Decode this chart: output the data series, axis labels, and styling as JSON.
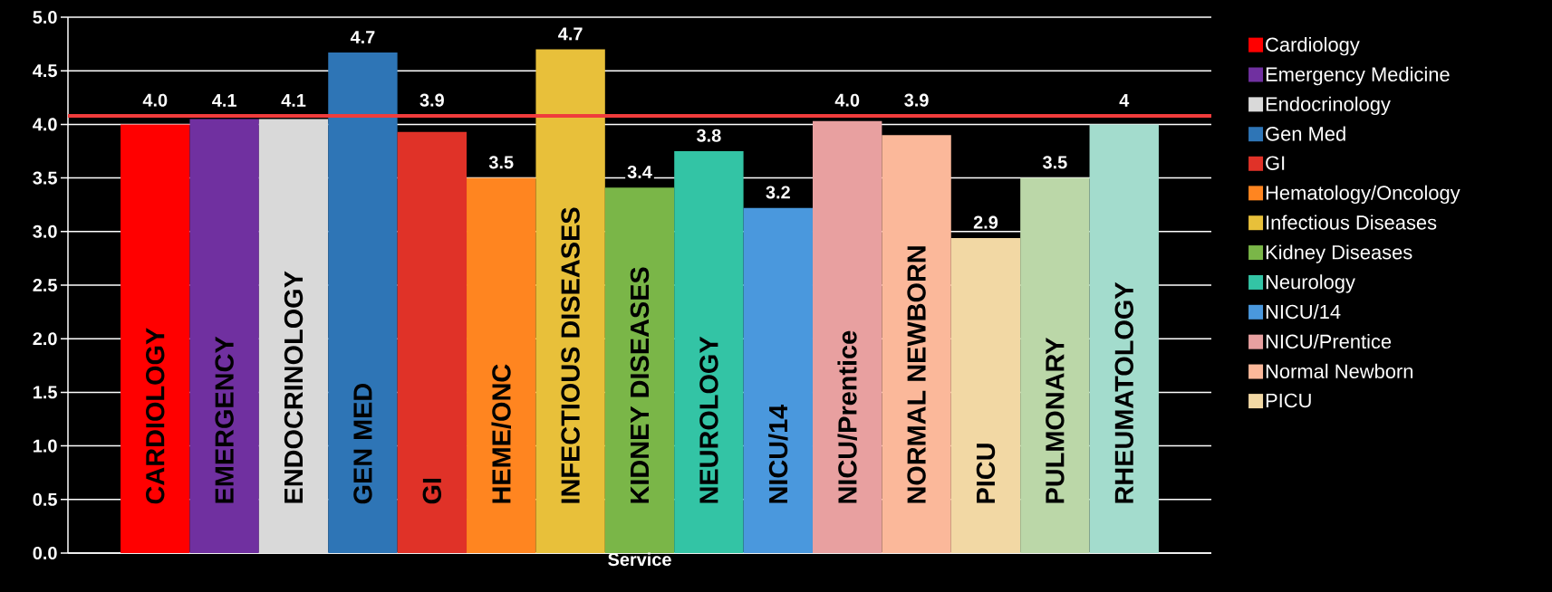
{
  "chart_data": {
    "type": "bar",
    "xlabel": "Service",
    "legend": "right",
    "grid": "y",
    "data_labels": false,
    "categories": [
      "CARDIOLOGY",
      "EMERGENCY",
      "ENDOCRINOLOGY",
      "GEN MED",
      "GI",
      "HEME/ONC",
      "INFECTIOUS DISEASES",
      "KIDNEY DISEASES",
      "NEUROLOGY",
      "NICU/14",
      "NICU/Prentice",
      "NORMAL NEWBORN",
      "PICU",
      "PULMONARY",
      "RHEUMATOLOGY"
    ],
    "ylim": [
      0,
      5
    ],
    "yticks": [
      {
        "value": 0,
        "label": "0.0"
      },
      {
        "value": 0.5,
        "label": "0.5"
      },
      {
        "value": 1,
        "label": "1.0"
      },
      {
        "value": 1.5,
        "label": "1.5"
      },
      {
        "value": 2,
        "label": "2.0"
      },
      {
        "value": 2.5,
        "label": "2.5"
      },
      {
        "value": 3,
        "label": "3.0"
      },
      {
        "value": 3.5,
        "label": "3.5"
      },
      {
        "value": 4,
        "label": "4.0"
      },
      {
        "value": 4.5,
        "label": "4.5"
      },
      {
        "value": 5,
        "label": "5.0"
      }
    ],
    "ref_lines": [
      {
        "axis": "y",
        "value": 4.08,
        "color": "#f03c3c"
      }
    ],
    "series": [
      {
        "name": "Cardiology",
        "color": "#ff0000",
        "values": [
          4.0,
          null,
          null,
          null,
          null,
          null,
          null,
          null,
          null,
          null,
          null,
          null,
          null,
          null,
          null
        ],
        "value_labels": [
          "4.0",
          null,
          null,
          null,
          null,
          null,
          null,
          null,
          null,
          null,
          null,
          null,
          null,
          null,
          null
        ]
      },
      {
        "name": "Emergency Medicine",
        "color": "#7030a0",
        "values": [
          null,
          4.05,
          null,
          null,
          null,
          null,
          null,
          null,
          null,
          null,
          null,
          null,
          null,
          null,
          null
        ],
        "value_labels": [
          null,
          "4.1",
          null,
          null,
          null,
          null,
          null,
          null,
          null,
          null,
          null,
          null,
          null,
          null,
          null
        ]
      },
      {
        "name": "Endocrinology",
        "color": "#d9d9d9",
        "values": [
          null,
          null,
          4.05,
          null,
          null,
          null,
          null,
          null,
          null,
          null,
          null,
          null,
          null,
          null,
          null
        ],
        "value_labels": [
          null,
          null,
          "4.1",
          null,
          null,
          null,
          null,
          null,
          null,
          null,
          null,
          null,
          null,
          null,
          null
        ]
      },
      {
        "name": "Gen Med",
        "color": "#2e75b6",
        "values": [
          null,
          null,
          null,
          4.67,
          null,
          null,
          null,
          null,
          null,
          null,
          null,
          null,
          null,
          null,
          null
        ],
        "value_labels": [
          null,
          null,
          null,
          "4.7",
          null,
          null,
          null,
          null,
          null,
          null,
          null,
          null,
          null,
          null,
          null
        ]
      },
      {
        "name": "GI",
        "color": "#e03228",
        "values": [
          null,
          null,
          null,
          null,
          3.93,
          null,
          null,
          null,
          null,
          null,
          null,
          null,
          null,
          null,
          null
        ],
        "value_labels": [
          null,
          null,
          null,
          null,
          "3.9",
          null,
          null,
          null,
          null,
          null,
          null,
          null,
          null,
          null,
          null
        ]
      },
      {
        "name": "Hematology/Oncology",
        "color": "#ff8520",
        "values": [
          null,
          null,
          null,
          null,
          null,
          3.5,
          null,
          null,
          null,
          null,
          null,
          null,
          null,
          null,
          null
        ],
        "value_labels": [
          null,
          null,
          null,
          null,
          null,
          "3.5",
          null,
          null,
          null,
          null,
          null,
          null,
          null,
          null,
          null
        ]
      },
      {
        "name": "Infectious Diseases",
        "color": "#e8c03a",
        "values": [
          null,
          null,
          null,
          null,
          null,
          null,
          4.7,
          null,
          null,
          null,
          null,
          null,
          null,
          null,
          null
        ],
        "value_labels": [
          null,
          null,
          null,
          null,
          null,
          null,
          "4.7",
          null,
          null,
          null,
          null,
          null,
          null,
          null,
          null
        ]
      },
      {
        "name": "Kidney Diseases",
        "color": "#7ab648",
        "values": [
          null,
          null,
          null,
          null,
          null,
          null,
          null,
          3.41,
          null,
          null,
          null,
          null,
          null,
          null,
          null
        ],
        "value_labels": [
          null,
          null,
          null,
          null,
          null,
          null,
          null,
          "3.4",
          null,
          null,
          null,
          null,
          null,
          null,
          null
        ]
      },
      {
        "name": "Neurology",
        "color": "#33c4a5",
        "values": [
          null,
          null,
          null,
          null,
          null,
          null,
          null,
          null,
          3.75,
          null,
          null,
          null,
          null,
          null,
          null
        ],
        "value_labels": [
          null,
          null,
          null,
          null,
          null,
          null,
          null,
          null,
          "3.8",
          null,
          null,
          null,
          null,
          null,
          null
        ]
      },
      {
        "name": "NICU/14",
        "color": "#4a98dd",
        "values": [
          null,
          null,
          null,
          null,
          null,
          null,
          null,
          null,
          null,
          3.22,
          null,
          null,
          null,
          null,
          null
        ],
        "value_labels": [
          null,
          null,
          null,
          null,
          null,
          null,
          null,
          null,
          null,
          "3.2",
          null,
          null,
          null,
          null,
          null
        ]
      },
      {
        "name": "NICU/Prentice",
        "color": "#e8a0a0",
        "values": [
          null,
          null,
          null,
          null,
          null,
          null,
          null,
          null,
          null,
          null,
          4.03,
          null,
          null,
          null,
          null
        ],
        "value_labels": [
          null,
          null,
          null,
          null,
          null,
          null,
          null,
          null,
          null,
          null,
          "4.0",
          null,
          null,
          null,
          null
        ]
      },
      {
        "name": "Normal Newborn",
        "color": "#fbb89a",
        "values": [
          null,
          null,
          null,
          null,
          null,
          null,
          null,
          null,
          null,
          null,
          null,
          3.9,
          null,
          null,
          null
        ],
        "value_labels": [
          null,
          null,
          null,
          null,
          null,
          null,
          null,
          null,
          null,
          null,
          null,
          "3.9",
          null,
          null,
          null
        ]
      },
      {
        "name": "PICU",
        "color": "#f2d8a4",
        "values": [
          null,
          null,
          null,
          null,
          null,
          null,
          null,
          null,
          null,
          null,
          null,
          null,
          2.94,
          null,
          null
        ],
        "value_labels": [
          null,
          null,
          null,
          null,
          null,
          null,
          null,
          null,
          null,
          null,
          null,
          null,
          "2.9",
          null,
          null
        ]
      },
      {
        "color": "#bbd7a8",
        "values": [
          null,
          null,
          null,
          null,
          null,
          null,
          null,
          null,
          null,
          null,
          null,
          null,
          null,
          3.5,
          null
        ],
        "value_labels": [
          null,
          null,
          null,
          null,
          null,
          null,
          null,
          null,
          null,
          null,
          null,
          null,
          null,
          "3.5",
          null
        ]
      },
      {
        "color": "#a3dccd",
        "values": [
          null,
          null,
          null,
          null,
          null,
          null,
          null,
          null,
          null,
          null,
          null,
          null,
          null,
          null,
          4.0
        ],
        "value_labels": [
          null,
          null,
          null,
          null,
          null,
          null,
          null,
          null,
          null,
          null,
          null,
          null,
          null,
          null,
          "4"
        ]
      }
    ]
  }
}
